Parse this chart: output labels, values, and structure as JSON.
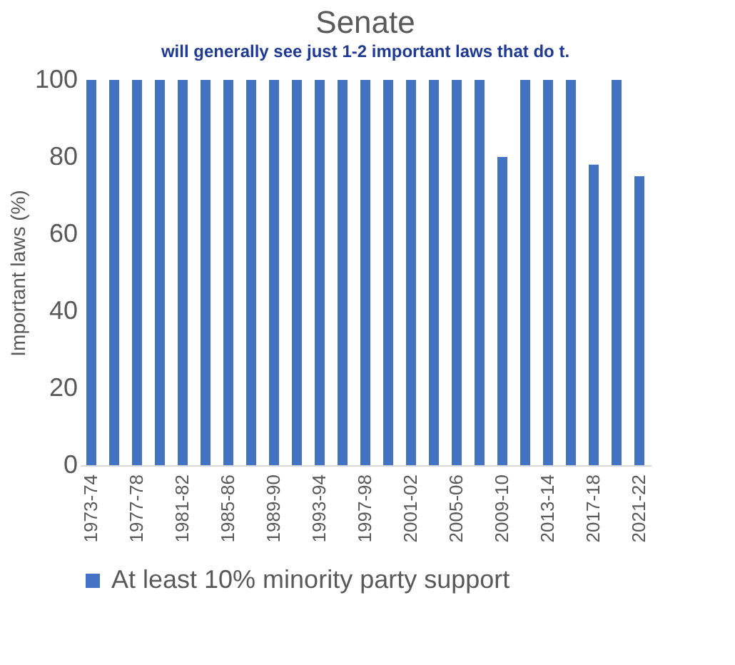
{
  "chart_data": {
    "type": "bar",
    "title": "Senate",
    "ylabel": "Important laws (%)",
    "annotations": [
      "will generally see just 1-2 important laws that do t."
    ],
    "categories": [
      "1973-74",
      null,
      "1977-78",
      null,
      "1981-82",
      null,
      "1985-86",
      null,
      "1989-90",
      null,
      "1993-94",
      null,
      "1997-98",
      null,
      "2001-02",
      null,
      "2005-06",
      null,
      "2009-10",
      null,
      "2013-14",
      null,
      "2017-18",
      null,
      "2021-22"
    ],
    "series": [
      {
        "name": "At least 10% minority party support",
        "color": "#4472c4",
        "values": [
          100,
          100,
          100,
          100,
          100,
          100,
          100,
          100,
          100,
          100,
          100,
          100,
          100,
          100,
          100,
          100,
          100,
          100,
          80,
          100,
          100,
          100,
          78,
          100,
          75
        ]
      }
    ],
    "ylim": [
      0,
      100
    ],
    "yticks": [
      0,
      20,
      40,
      60,
      80,
      100
    ],
    "legend": "bottom"
  }
}
